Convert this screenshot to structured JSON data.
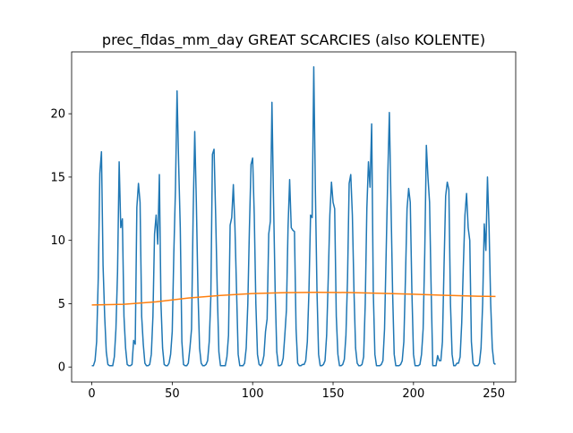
{
  "chart_data": {
    "type": "line",
    "title": "prec_fldas_mm_day GREAT SCARCIES (also KOLENTE)",
    "xlim": [
      -12.55,
      263.55
    ],
    "ylim": [
      -1.185,
      24.885
    ],
    "xticks": [
      0,
      50,
      100,
      150,
      200,
      250
    ],
    "yticks": [
      0,
      5,
      10,
      15,
      20
    ],
    "series": [
      {
        "color": "#1f77b4",
        "x": [
          0,
          1,
          2,
          3,
          4,
          5,
          6,
          7,
          8,
          9,
          10,
          11,
          12,
          13,
          14,
          15,
          16,
          17,
          18,
          19,
          20,
          21,
          22,
          23,
          24,
          25,
          26,
          27,
          28,
          29,
          30,
          31,
          32,
          33,
          34,
          35,
          36,
          37,
          38,
          39,
          40,
          41,
          42,
          43,
          44,
          45,
          46,
          47,
          48,
          49,
          50,
          51,
          52,
          53,
          54,
          55,
          56,
          57,
          58,
          59,
          60,
          61,
          62,
          63,
          64,
          65,
          66,
          67,
          68,
          69,
          70,
          71,
          72,
          73,
          74,
          75,
          76,
          77,
          78,
          79,
          80,
          81,
          82,
          83,
          84,
          85,
          86,
          87,
          88,
          89,
          90,
          91,
          92,
          93,
          94,
          95,
          96,
          97,
          98,
          99,
          100,
          101,
          102,
          103,
          104,
          105,
          106,
          107,
          108,
          109,
          110,
          111,
          112,
          113,
          114,
          115,
          116,
          117,
          118,
          119,
          120,
          121,
          122,
          123,
          124,
          125,
          126,
          127,
          128,
          129,
          130,
          131,
          132,
          133,
          134,
          135,
          136,
          137,
          138,
          139,
          140,
          141,
          142,
          143,
          144,
          145,
          146,
          147,
          148,
          149,
          150,
          151,
          152,
          153,
          154,
          155,
          156,
          157,
          158,
          159,
          160,
          161,
          162,
          163,
          164,
          165,
          166,
          167,
          168,
          169,
          170,
          171,
          172,
          173,
          174,
          175,
          176,
          177,
          178,
          179,
          180,
          181,
          182,
          183,
          184,
          185,
          186,
          187,
          188,
          189,
          190,
          191,
          192,
          193,
          194,
          195,
          196,
          197,
          198,
          199,
          200,
          201,
          202,
          203,
          204,
          205,
          206,
          207,
          208,
          209,
          210,
          211,
          212,
          213,
          214,
          215,
          216,
          217,
          218,
          219,
          220,
          221,
          222,
          223,
          224,
          225,
          226,
          227,
          228,
          229,
          230,
          231,
          232,
          233,
          234,
          235,
          236,
          237,
          238,
          239,
          240,
          241,
          242,
          243,
          244,
          245,
          246,
          247,
          248,
          249,
          250,
          251
        ],
        "values": [
          0.1,
          0.1,
          0.5,
          2.0,
          7.0,
          15.3,
          17.0,
          8.0,
          4.0,
          1.2,
          0.2,
          0.1,
          0.1,
          0.1,
          0.8,
          3.0,
          7.5,
          16.2,
          11.0,
          11.7,
          4.0,
          1.5,
          0.2,
          0.1,
          0.1,
          0.2,
          2.1,
          1.8,
          12.6,
          14.5,
          13.0,
          4.0,
          1.8,
          0.3,
          0.1,
          0.1,
          0.2,
          1.0,
          4.0,
          10.5,
          12.0,
          9.7,
          15.2,
          5.0,
          1.5,
          0.2,
          0.1,
          0.1,
          0.3,
          1.0,
          2.8,
          9.0,
          14.0,
          21.8,
          16.0,
          11.0,
          2.0,
          0.2,
          0.1,
          0.1,
          0.3,
          1.5,
          3.0,
          12.0,
          18.6,
          13.0,
          6.0,
          1.5,
          0.3,
          0.1,
          0.1,
          0.2,
          0.5,
          2.0,
          5.5,
          16.8,
          17.2,
          12.0,
          6.0,
          1.2,
          0.1,
          0.1,
          0.1,
          0.1,
          0.8,
          2.5,
          11.2,
          11.8,
          14.4,
          11.0,
          6.0,
          1.0,
          0.1,
          0.1,
          0.1,
          0.3,
          1.5,
          5.0,
          11.0,
          16.0,
          16.5,
          12.0,
          5.0,
          1.0,
          0.2,
          0.1,
          0.3,
          0.9,
          2.8,
          3.8,
          10.5,
          11.5,
          20.9,
          13.0,
          6.0,
          1.2,
          0.1,
          0.1,
          0.2,
          0.7,
          2.5,
          4.5,
          11.0,
          14.8,
          11.0,
          10.8,
          10.7,
          3.0,
          0.3,
          0.1,
          0.1,
          0.2,
          0.2,
          0.5,
          2.0,
          6.0,
          12.0,
          11.8,
          23.7,
          14.0,
          6.0,
          1.0,
          0.1,
          0.1,
          0.2,
          0.5,
          2.5,
          7.0,
          12.0,
          14.6,
          13.0,
          12.5,
          4.0,
          1.0,
          0.1,
          0.1,
          0.2,
          0.6,
          2.5,
          7.0,
          14.5,
          15.2,
          12.0,
          6.0,
          1.5,
          0.3,
          0.1,
          0.1,
          0.2,
          0.8,
          5.0,
          12.5,
          16.2,
          14.2,
          19.2,
          6.0,
          1.0,
          0.1,
          0.1,
          0.1,
          0.2,
          0.5,
          3.0,
          9.0,
          15.0,
          20.1,
          13.0,
          6.0,
          1.0,
          0.1,
          0.1,
          0.1,
          0.2,
          0.5,
          2.0,
          7.0,
          12.5,
          14.1,
          13.0,
          6.0,
          1.0,
          0.1,
          0.1,
          0.1,
          0.2,
          1.0,
          3.0,
          9.0,
          17.5,
          15.0,
          13.0,
          6.0,
          0.1,
          0.1,
          0.1,
          0.9,
          0.5,
          0.5,
          2.0,
          8.0,
          13.5,
          14.6,
          14.0,
          5.0,
          1.0,
          0.1,
          0.1,
          0.3,
          0.3,
          0.8,
          3.5,
          8.0,
          12.0,
          13.7,
          11.0,
          10.0,
          2.0,
          0.3,
          0.1,
          0.1,
          0.1,
          0.3,
          1.5,
          5.0,
          11.3,
          9.2,
          15.0,
          11.0,
          5.0,
          1.5,
          0.3,
          0.2
        ]
      },
      {
        "color": "#ff7f0e",
        "x": [
          0,
          20,
          40,
          60,
          80,
          100,
          120,
          140,
          160,
          180,
          200,
          220,
          240,
          251
        ],
        "values": [
          4.9,
          4.95,
          5.15,
          5.45,
          5.65,
          5.8,
          5.87,
          5.9,
          5.88,
          5.82,
          5.75,
          5.66,
          5.59,
          5.57
        ]
      }
    ]
  }
}
